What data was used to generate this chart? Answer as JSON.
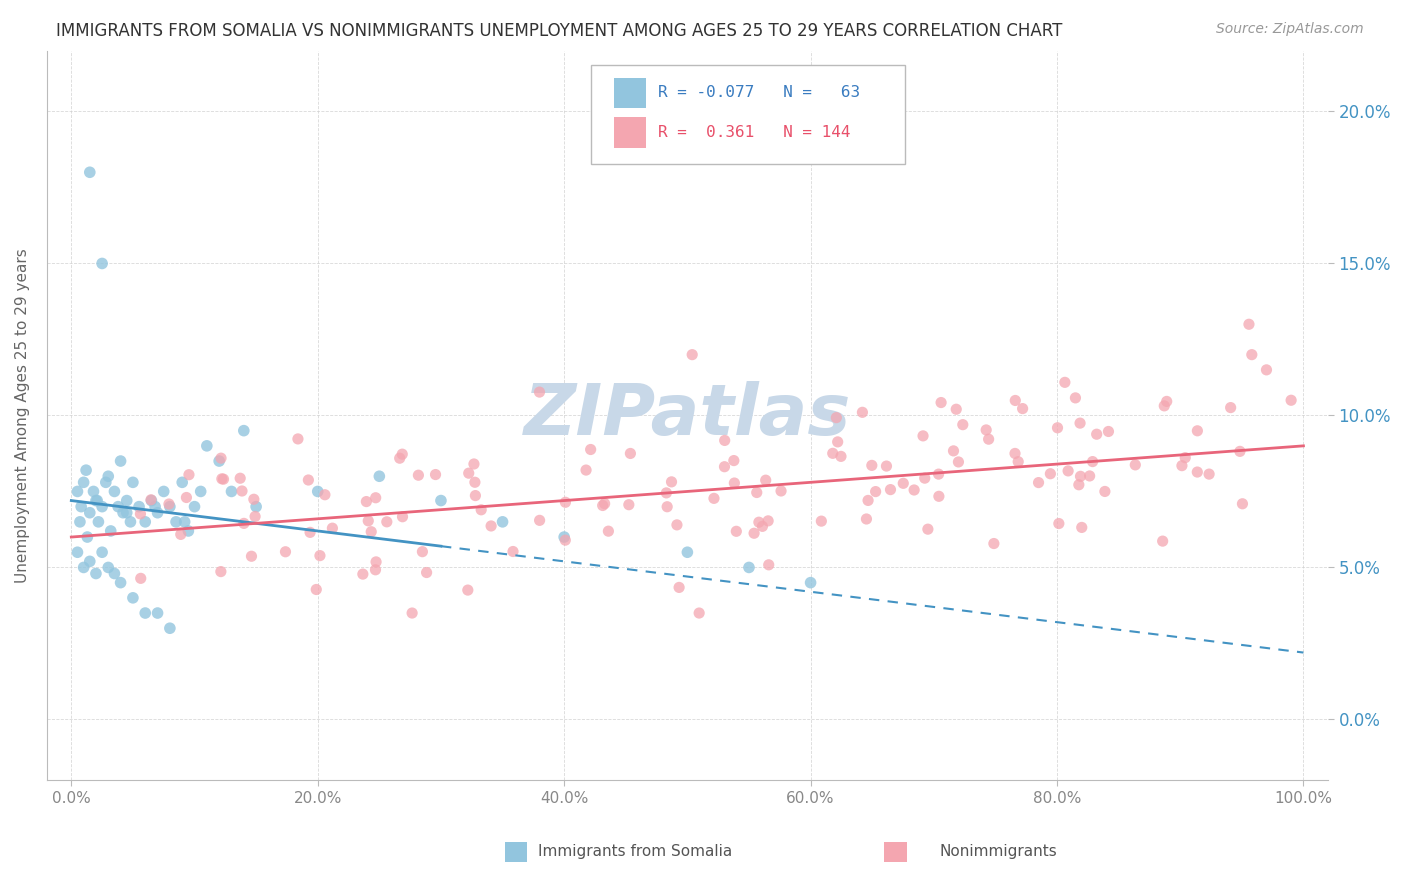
{
  "title": "IMMIGRANTS FROM SOMALIA VS NONIMMIGRANTS UNEMPLOYMENT AMONG AGES 25 TO 29 YEARS CORRELATION CHART",
  "source": "Source: ZipAtlas.com",
  "ylabel": "Unemployment Among Ages 25 to 29 years",
  "xlim": [
    -2,
    102
  ],
  "ylim": [
    -2,
    22
  ],
  "xticks": [
    0,
    20,
    40,
    60,
    80,
    100
  ],
  "xticklabels": [
    "0.0%",
    "20.0%",
    "40.0%",
    "60.0%",
    "80.0%",
    "100.0%"
  ],
  "yticks": [
    0,
    5,
    10,
    15,
    20
  ],
  "yticklabels": [
    "0.0%",
    "5.0%",
    "10.0%",
    "15.0%",
    "20.0%"
  ],
  "somalia_color": "#92c5de",
  "nonimm_color": "#f4a6b0",
  "somalia_line_color": "#4393c3",
  "nonimm_line_color": "#e8657a",
  "legend_text_blue": "#3a7cc0",
  "legend_text_pink": "#e8506a",
  "ytick_color": "#4393c3",
  "grid_color": "#d0d0d0",
  "watermark_color": "#c8d8e8",
  "title_color": "#333333",
  "source_color": "#999999",
  "legend_r1": "R = -0.077",
  "legend_n1": "N =  63",
  "legend_r2": "R =  0.361",
  "legend_n2": "N = 144",
  "somalia_solid_end": 30,
  "nonimm_solid_start": 0,
  "som_trend_start_y": 7.2,
  "som_trend_end_y": 5.8,
  "som_trend_at100_y": 1.0,
  "non_trend_start_y": 6.0,
  "non_trend_end_y": 9.0
}
